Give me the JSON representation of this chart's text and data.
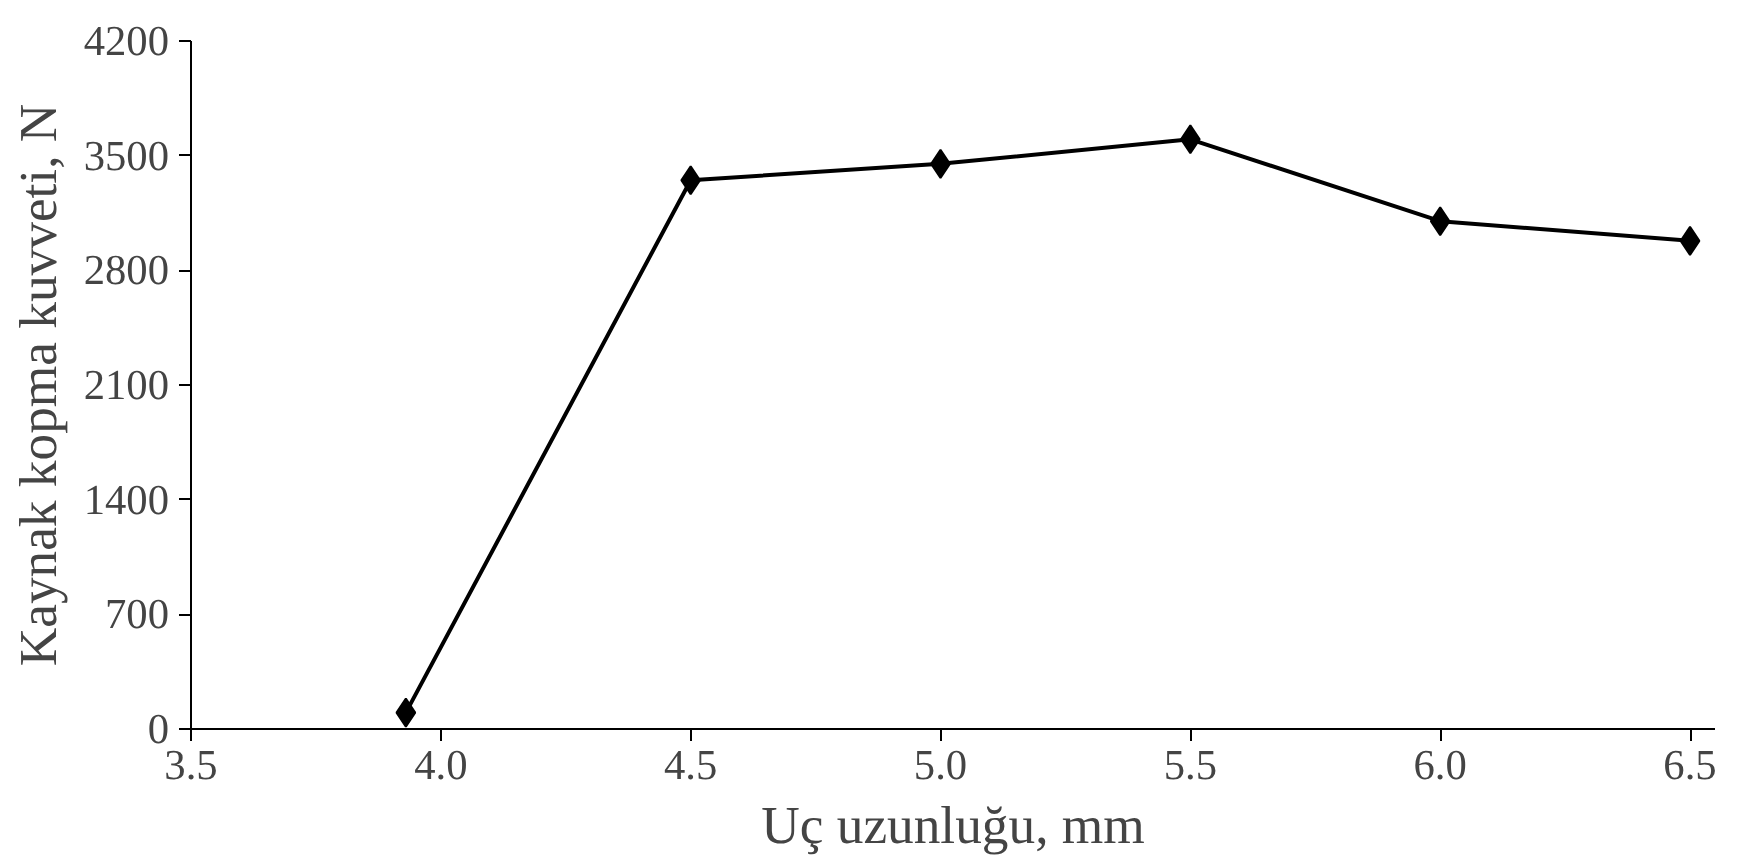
{
  "chart_data": {
    "type": "line",
    "xlabel": "Uç uzunluğu, mm",
    "ylabel": "Kaynak kopma kuvveti, N",
    "x": [
      3.93,
      4.5,
      5.0,
      5.5,
      6.0,
      6.5
    ],
    "series": [
      {
        "color": "#000000",
        "values": [
          100,
          3350,
          3450,
          3600,
          3100,
          2980
        ]
      }
    ],
    "xlim": [
      3.5,
      6.55
    ],
    "xticks": [
      {
        "value": 3.5,
        "label": "3.5"
      },
      {
        "value": 4.0,
        "label": "4.0"
      },
      {
        "value": 4.5,
        "label": "4.5"
      },
      {
        "value": 5.0,
        "label": "5.0"
      },
      {
        "value": 5.5,
        "label": "5.5"
      },
      {
        "value": 6.0,
        "label": "6.0"
      },
      {
        "value": 6.5,
        "label": "6.5"
      }
    ],
    "ylim": [
      0,
      4200
    ],
    "yticks": [
      0,
      700,
      1400,
      2100,
      2800,
      3500,
      4200
    ],
    "grid": false,
    "marker": "diamond",
    "line_style": "solid"
  }
}
